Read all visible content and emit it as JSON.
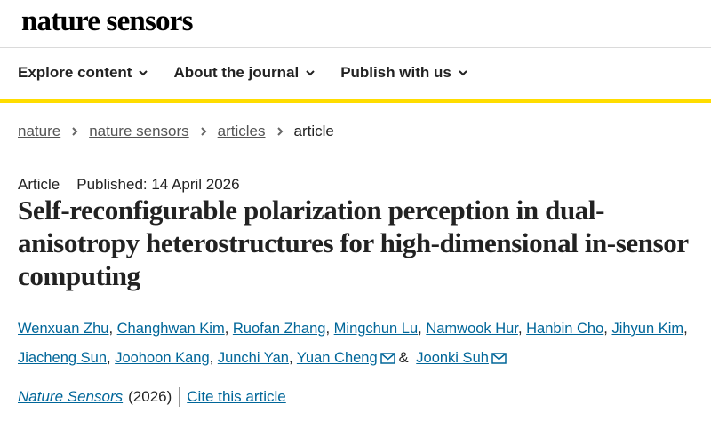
{
  "header": {
    "logo": "nature sensors"
  },
  "nav": {
    "items": [
      "Explore content",
      "About the journal",
      "Publish with us"
    ]
  },
  "breadcrumbs": {
    "links": [
      "nature",
      "nature sensors",
      "articles"
    ],
    "current": "article"
  },
  "article": {
    "type": "Article",
    "published": "Published: 14 April 2026",
    "title": "Self-reconfigurable polarization perception in dual-anisotropy heterostructures for high-dimensional in-sensor computing",
    "authors": [
      {
        "name": "Wenxuan Zhu",
        "sep": ","
      },
      {
        "name": "Changhwan Kim",
        "sep": ","
      },
      {
        "name": "Ruofan Zhang",
        "sep": ","
      },
      {
        "name": "Mingchun Lu",
        "sep": ","
      },
      {
        "name": "Namwook Hur",
        "sep": ","
      },
      {
        "name": "Hanbin Cho",
        "sep": ","
      },
      {
        "name": "Jihyun Kim",
        "sep": ","
      },
      {
        "name": "Jiacheng Sun",
        "sep": ","
      },
      {
        "name": "Joohoon Kang",
        "sep": ","
      },
      {
        "name": "Junchi Yan",
        "sep": ","
      },
      {
        "name": "Yuan Cheng",
        "email": true,
        "sep": "&"
      },
      {
        "name": "Joonki Suh",
        "email": true
      }
    ],
    "journal": "Nature Sensors",
    "year": "(2026)",
    "cite": "Cite this article"
  }
}
